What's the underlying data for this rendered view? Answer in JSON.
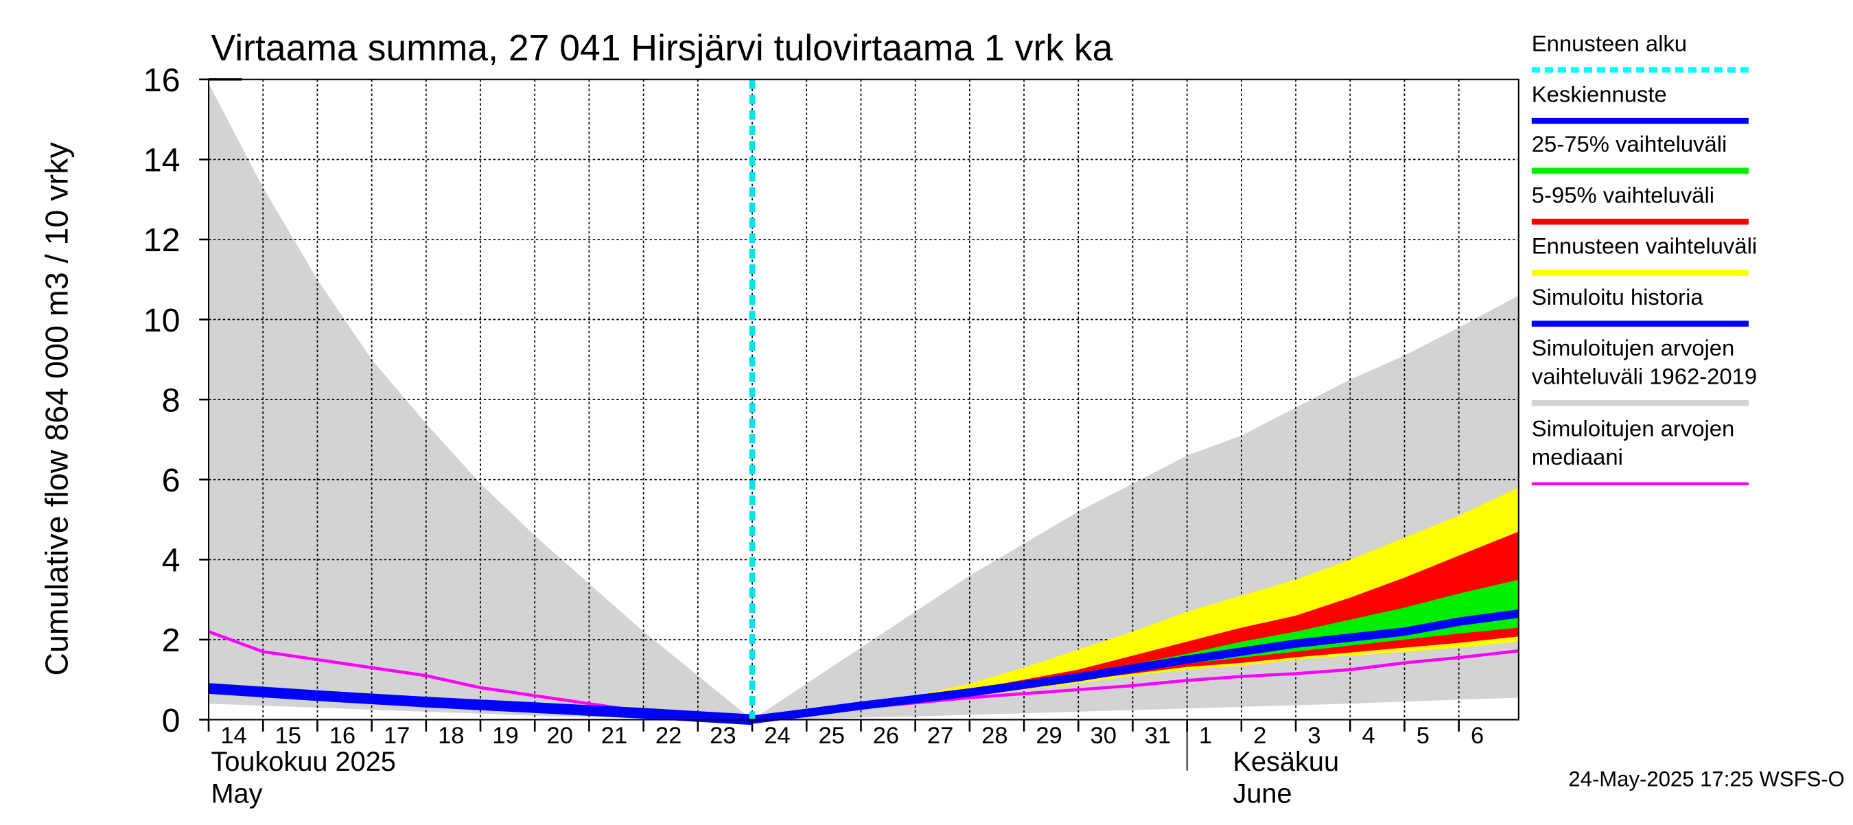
{
  "chart_data": {
    "type": "area",
    "title": "Virtaama summa, 27 041 Hirsjärvi tulovirtaama 1 vrk ka",
    "ylabel": "Cumulative flow    864 000 m3 / 10 vrky",
    "ylim": [
      0,
      16
    ],
    "yticks": [
      "0",
      "2",
      "4",
      "6",
      "8",
      "10",
      "12",
      "14",
      "16"
    ],
    "xlim": [
      0,
      24.1
    ],
    "xticks": [
      {
        "x": 0,
        "label": "14"
      },
      {
        "x": 1,
        "label": "15"
      },
      {
        "x": 2,
        "label": "16"
      },
      {
        "x": 3,
        "label": "17"
      },
      {
        "x": 4,
        "label": "18"
      },
      {
        "x": 5,
        "label": "19"
      },
      {
        "x": 6,
        "label": "20"
      },
      {
        "x": 7,
        "label": "21"
      },
      {
        "x": 8,
        "label": "22"
      },
      {
        "x": 9,
        "label": "23"
      },
      {
        "x": 10,
        "label": "24"
      },
      {
        "x": 11,
        "label": "25"
      },
      {
        "x": 12,
        "label": "26"
      },
      {
        "x": 13,
        "label": "27"
      },
      {
        "x": 14,
        "label": "28"
      },
      {
        "x": 15,
        "label": "29"
      },
      {
        "x": 16,
        "label": "30"
      },
      {
        "x": 17,
        "label": "31"
      },
      {
        "x": 18,
        "label": "1"
      },
      {
        "x": 19,
        "label": "2"
      },
      {
        "x": 20,
        "label": "3"
      },
      {
        "x": 21,
        "label": "4"
      },
      {
        "x": 22,
        "label": "5"
      },
      {
        "x": 23,
        "label": "6"
      }
    ],
    "month_labels": [
      {
        "x": 0,
        "line1": "Toukokuu  2025",
        "line2": "May"
      },
      {
        "x": 18.8,
        "line1": "Kesäkuu",
        "line2": "June"
      }
    ],
    "month_divider_x": 18,
    "forecast_start_x": 10,
    "series": [
      {
        "name": "Simuloitujen arvojen vaihteluväli 1962-2019",
        "kind": "band",
        "color": "#d3d3d3",
        "x": [
          0,
          1,
          2,
          3,
          4,
          5,
          6,
          7,
          8,
          9,
          10,
          11,
          12,
          13,
          14,
          15,
          16,
          17,
          18,
          19,
          20,
          21,
          22,
          23,
          24.1
        ],
        "upper": [
          15.9,
          13.3,
          11.0,
          9.0,
          7.4,
          5.9,
          4.6,
          3.4,
          2.2,
          1.1,
          0.0,
          0.9,
          1.8,
          2.7,
          3.6,
          4.4,
          5.2,
          5.9,
          6.6,
          7.1,
          7.8,
          8.5,
          9.1,
          9.8,
          10.6
        ],
        "lower": [
          0.4,
          0.35,
          0.3,
          0.25,
          0.2,
          0.15,
          0.1,
          0.07,
          0.03,
          0.01,
          0.0,
          0.02,
          0.05,
          0.08,
          0.12,
          0.16,
          0.2,
          0.24,
          0.28,
          0.32,
          0.36,
          0.4,
          0.45,
          0.5,
          0.55
        ]
      },
      {
        "name": "Ennusteen vaihteluväli",
        "kind": "band",
        "color": "#ffff00",
        "x": [
          10,
          11,
          12,
          13,
          14,
          15,
          16,
          17,
          18,
          19,
          20,
          21,
          22,
          23,
          24.1
        ],
        "upper": [
          0.0,
          0.2,
          0.4,
          0.6,
          0.9,
          1.3,
          1.75,
          2.2,
          2.7,
          3.1,
          3.5,
          4.0,
          4.55,
          5.1,
          5.8
        ],
        "lower": [
          0.0,
          0.15,
          0.3,
          0.45,
          0.6,
          0.75,
          0.9,
          1.1,
          1.25,
          1.35,
          1.5,
          1.6,
          1.7,
          1.8,
          1.95
        ]
      },
      {
        "name": "5-95% vaihteluväli",
        "kind": "band",
        "color": "#ff0000",
        "x": [
          10,
          11,
          12,
          13,
          14,
          15,
          16,
          17,
          18,
          19,
          20,
          21,
          22,
          23,
          24.1
        ],
        "upper": [
          0.0,
          0.19,
          0.38,
          0.55,
          0.75,
          1.0,
          1.25,
          1.6,
          1.95,
          2.3,
          2.6,
          3.05,
          3.55,
          4.1,
          4.7
        ],
        "lower": [
          0.0,
          0.16,
          0.32,
          0.48,
          0.64,
          0.82,
          0.98,
          1.15,
          1.32,
          1.42,
          1.56,
          1.68,
          1.8,
          1.92,
          2.08
        ]
      },
      {
        "name": "25-75% vaihteluväli",
        "kind": "band",
        "color": "#00ee00",
        "x": [
          10,
          11,
          12,
          13,
          14,
          15,
          16,
          17,
          18,
          19,
          20,
          21,
          22,
          23,
          24.1
        ],
        "upper": [
          0.0,
          0.18,
          0.36,
          0.52,
          0.7,
          0.92,
          1.12,
          1.38,
          1.65,
          1.95,
          2.2,
          2.5,
          2.8,
          3.15,
          3.5
        ],
        "lower": [
          0.0,
          0.17,
          0.34,
          0.5,
          0.67,
          0.85,
          1.02,
          1.2,
          1.4,
          1.55,
          1.7,
          1.85,
          2.0,
          2.15,
          2.3
        ]
      },
      {
        "name": "Keskiennuste",
        "kind": "line",
        "color": "#0000ff",
        "width": 7,
        "x": [
          10,
          11,
          12,
          13,
          14,
          15,
          16,
          17,
          18,
          19,
          20,
          21,
          22,
          23,
          24.1
        ],
        "values": [
          0.0,
          0.17,
          0.35,
          0.51,
          0.68,
          0.87,
          1.06,
          1.28,
          1.5,
          1.7,
          1.9,
          2.05,
          2.2,
          2.45,
          2.65
        ]
      },
      {
        "name": "Simuloitu historia",
        "kind": "line",
        "color": "#0000ff",
        "width": 9,
        "x": [
          0,
          1,
          2,
          3,
          4,
          5,
          6,
          7,
          8,
          9,
          10
        ],
        "values": [
          0.78,
          0.69,
          0.6,
          0.52,
          0.44,
          0.37,
          0.3,
          0.23,
          0.16,
          0.08,
          0.0
        ]
      },
      {
        "name": "Simuloitujen arvojen mediaani",
        "kind": "line",
        "color": "#ff00ff",
        "width": 2.6,
        "x": [
          0,
          1,
          2,
          3,
          4,
          5,
          6,
          7,
          8,
          9,
          10,
          11,
          12,
          13,
          14,
          15,
          16,
          17,
          18,
          19,
          20,
          21,
          22,
          23,
          24.1
        ],
        "values": [
          2.2,
          1.7,
          1.5,
          1.3,
          1.1,
          0.8,
          0.6,
          0.4,
          0.2,
          0.1,
          0.0,
          0.15,
          0.3,
          0.42,
          0.55,
          0.65,
          0.75,
          0.85,
          0.98,
          1.08,
          1.15,
          1.25,
          1.42,
          1.55,
          1.72
        ]
      }
    ]
  },
  "legend": {
    "items": [
      {
        "label": "Ennusteen alku",
        "color": "#00ffff",
        "style": "dashed"
      },
      {
        "label": "Keskiennuste",
        "color": "#0000ff",
        "style": "solid"
      },
      {
        "label": "25-75% vaihteluväli",
        "color": "#00ee00",
        "style": "solid"
      },
      {
        "label": "5-95% vaihteluväli",
        "color": "#ff0000",
        "style": "solid"
      },
      {
        "label": "Ennusteen vaihteluväli",
        "color": "#ffff00",
        "style": "solid"
      },
      {
        "label": "Simuloitu historia",
        "color": "#0000ff",
        "style": "solid"
      },
      {
        "label": "Simuloitujen arvojen\nvaihteluväli 1962-2019",
        "color": "#d3d3d3",
        "style": "solid"
      },
      {
        "label": "Simuloitujen arvojen\nmediaani",
        "color": "#ff00ff",
        "style": "thin"
      }
    ]
  },
  "footer": "24-May-2025 17:25 WSFS-O"
}
